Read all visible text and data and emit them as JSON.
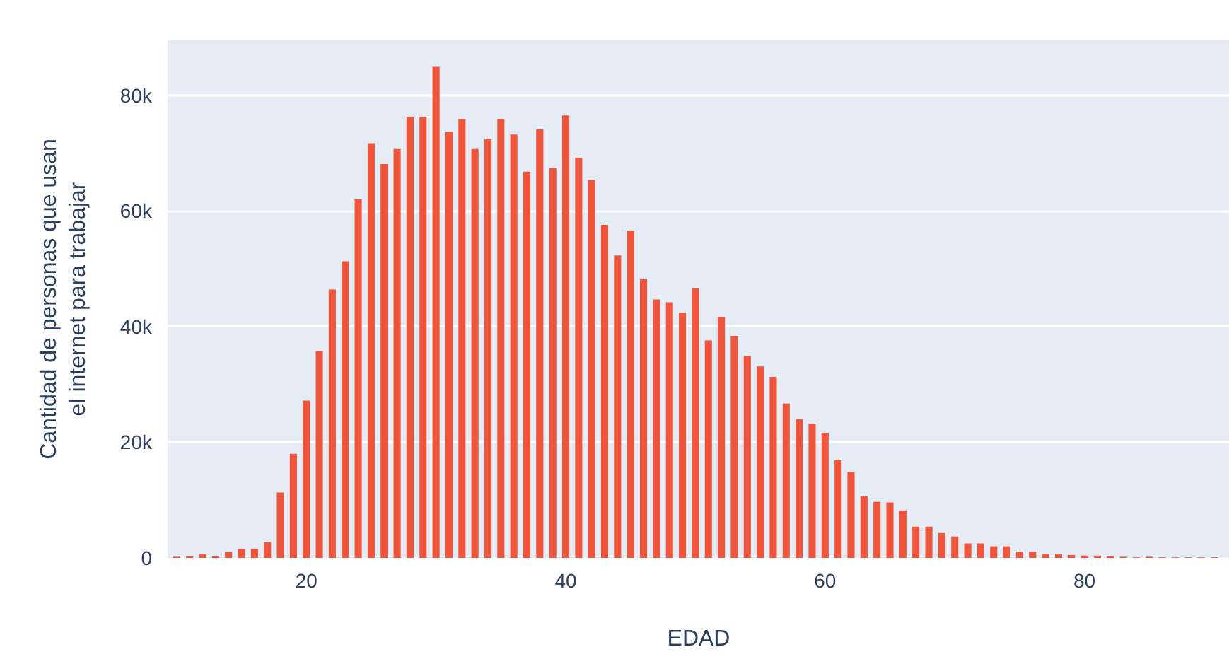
{
  "chart_data": {
    "type": "bar",
    "xlabel": "EDAD",
    "ylabel": "Cantidad de personas que usan\nel internet para trabajar",
    "x": [
      10,
      11,
      12,
      13,
      14,
      15,
      16,
      17,
      18,
      19,
      20,
      21,
      22,
      23,
      24,
      25,
      26,
      27,
      28,
      29,
      30,
      31,
      32,
      33,
      34,
      35,
      36,
      37,
      38,
      39,
      40,
      41,
      42,
      43,
      44,
      45,
      46,
      47,
      48,
      49,
      50,
      51,
      52,
      53,
      54,
      55,
      56,
      57,
      58,
      59,
      60,
      61,
      62,
      63,
      64,
      65,
      66,
      67,
      68,
      69,
      70,
      71,
      72,
      73,
      74,
      75,
      76,
      77,
      78,
      79,
      80,
      81,
      82,
      83,
      84,
      85,
      86,
      87,
      88,
      89,
      90
    ],
    "values": [
      200,
      300,
      600,
      300,
      1000,
      1600,
      1600,
      2700,
      11300,
      18000,
      27200,
      35800,
      46400,
      51300,
      62000,
      71700,
      68100,
      70700,
      76300,
      76300,
      84900,
      73700,
      75900,
      70700,
      72400,
      75900,
      73200,
      66800,
      74100,
      67400,
      76500,
      69200,
      65300,
      57600,
      52300,
      56600,
      48200,
      44700,
      44200,
      42400,
      46600,
      37600,
      41700,
      38400,
      34900,
      33100,
      31300,
      26700,
      24000,
      23200,
      21600,
      16900,
      14900,
      10700,
      9700,
      9600,
      8200,
      5400,
      5400,
      4300,
      3700,
      2500,
      2500,
      2000,
      2000,
      1100,
      1100,
      600,
      600,
      500,
      400,
      400,
      300,
      200,
      100,
      200,
      100,
      100,
      100,
      100,
      100
    ],
    "color": "#ef553b",
    "xlim": [
      9.3,
      91.2
    ],
    "ylim": [
      0,
      89500
    ],
    "xticks": [
      20,
      40,
      60,
      80
    ],
    "yticks": [
      {
        "value": 0,
        "label": "0"
      },
      {
        "value": 20000,
        "label": "20k"
      },
      {
        "value": 40000,
        "label": "40k"
      },
      {
        "value": 60000,
        "label": "60k"
      },
      {
        "value": 80000,
        "label": "80k"
      }
    ],
    "grid": "y"
  }
}
